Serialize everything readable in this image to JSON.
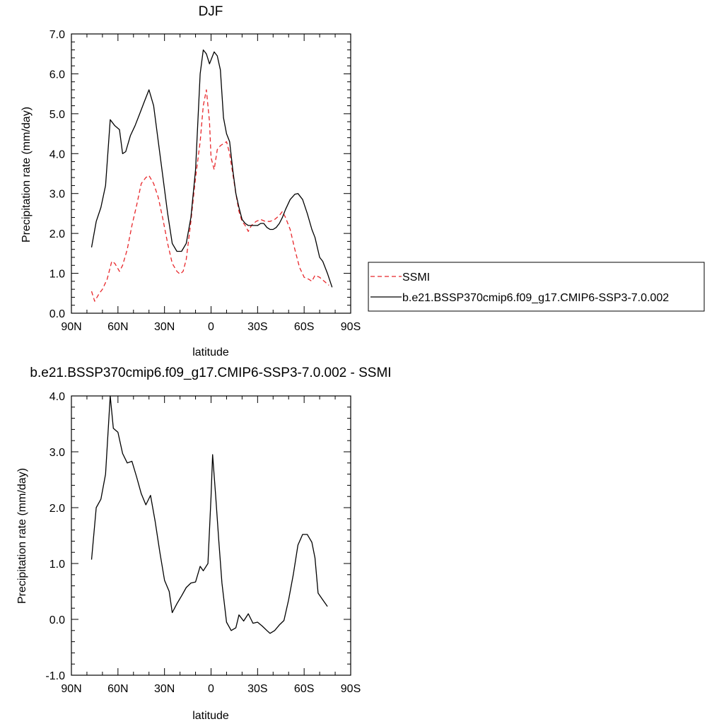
{
  "chart_data": [
    {
      "type": "line",
      "title": "DJF",
      "xlabel": "latitude",
      "ylabel": "Precipitation rate (mm/day)",
      "xlim": [
        -90,
        90
      ],
      "ylim": [
        0,
        7
      ],
      "xticks": [
        {
          "value": -90,
          "label": "90N"
        },
        {
          "value": -60,
          "label": "60N"
        },
        {
          "value": -30,
          "label": "30N"
        },
        {
          "value": 0,
          "label": "0"
        },
        {
          "value": 30,
          "label": "30S"
        },
        {
          "value": 60,
          "label": "60S"
        },
        {
          "value": 90,
          "label": "90S"
        }
      ],
      "yticks": [
        {
          "value": 0,
          "label": "0.0"
        },
        {
          "value": 1,
          "label": "1.0"
        },
        {
          "value": 2,
          "label": "2.0"
        },
        {
          "value": 3,
          "label": "3.0"
        },
        {
          "value": 4,
          "label": "4.0"
        },
        {
          "value": 5,
          "label": "5.0"
        },
        {
          "value": 6,
          "label": "6.0"
        },
        {
          "value": 7,
          "label": "7.0"
        }
      ],
      "legend": "right",
      "series": [
        {
          "name": "SSMI",
          "color": "#e8262a",
          "dash": "dashed",
          "points": [
            [
              -77,
              0.55
            ],
            [
              -75,
              0.3
            ],
            [
              -72,
              0.5
            ],
            [
              -70,
              0.6
            ],
            [
              -67,
              0.85
            ],
            [
              -64,
              1.3
            ],
            [
              -62,
              1.25
            ],
            [
              -59,
              1.05
            ],
            [
              -57,
              1.2
            ],
            [
              -54,
              1.6
            ],
            [
              -51,
              2.2
            ],
            [
              -48,
              2.7
            ],
            [
              -45,
              3.25
            ],
            [
              -42,
              3.4
            ],
            [
              -40,
              3.45
            ],
            [
              -37,
              3.25
            ],
            [
              -34,
              2.9
            ],
            [
              -31,
              2.35
            ],
            [
              -28,
              1.75
            ],
            [
              -25,
              1.25
            ],
            [
              -22,
              1.05
            ],
            [
              -20,
              0.98
            ],
            [
              -18,
              1.05
            ],
            [
              -16,
              1.35
            ],
            [
              -13,
              2.3
            ],
            [
              -10,
              3.4
            ],
            [
              -7,
              4.3
            ],
            [
              -5,
              5.2
            ],
            [
              -3,
              5.6
            ],
            [
              -1,
              4.8
            ],
            [
              0,
              3.9
            ],
            [
              2,
              3.6
            ],
            [
              4,
              4.1
            ],
            [
              6,
              4.2
            ],
            [
              8,
              4.25
            ],
            [
              10,
              4.3
            ],
            [
              12,
              4.0
            ],
            [
              14,
              3.5
            ],
            [
              16,
              3.0
            ],
            [
              18,
              2.55
            ],
            [
              20,
              2.3
            ],
            [
              22,
              2.2
            ],
            [
              24,
              2.05
            ],
            [
              26,
              2.2
            ],
            [
              29,
              2.3
            ],
            [
              32,
              2.35
            ],
            [
              35,
              2.3
            ],
            [
              38,
              2.3
            ],
            [
              41,
              2.35
            ],
            [
              44,
              2.45
            ],
            [
              46,
              2.55
            ],
            [
              48,
              2.4
            ],
            [
              51,
              2.1
            ],
            [
              54,
              1.6
            ],
            [
              57,
              1.15
            ],
            [
              60,
              0.9
            ],
            [
              63,
              0.85
            ],
            [
              65,
              0.8
            ],
            [
              67,
              0.95
            ],
            [
              70,
              0.9
            ],
            [
              73,
              0.8
            ],
            [
              76,
              0.7
            ]
          ]
        },
        {
          "name": "b.e21.BSSP370cmip6.f09_g17.CMIP6-SSP3-7.0.002",
          "color": "#000000",
          "dash": "solid",
          "points": [
            [
              -77,
              1.65
            ],
            [
              -74,
              2.3
            ],
            [
              -71,
              2.65
            ],
            [
              -68,
              3.2
            ],
            [
              -65,
              4.85
            ],
            [
              -62,
              4.7
            ],
            [
              -59,
              4.6
            ],
            [
              -57,
              4.0
            ],
            [
              -55,
              4.05
            ],
            [
              -52,
              4.45
            ],
            [
              -49,
              4.7
            ],
            [
              -46,
              5.0
            ],
            [
              -43,
              5.3
            ],
            [
              -40,
              5.6
            ],
            [
              -37,
              5.2
            ],
            [
              -34,
              4.3
            ],
            [
              -31,
              3.4
            ],
            [
              -28,
              2.5
            ],
            [
              -25,
              1.75
            ],
            [
              -22,
              1.55
            ],
            [
              -19,
              1.55
            ],
            [
              -16,
              1.75
            ],
            [
              -13,
              2.4
            ],
            [
              -10,
              3.6
            ],
            [
              -7,
              6.0
            ],
            [
              -5,
              6.6
            ],
            [
              -3,
              6.5
            ],
            [
              -1,
              6.25
            ],
            [
              1,
              6.45
            ],
            [
              2,
              6.55
            ],
            [
              4,
              6.45
            ],
            [
              6,
              6.1
            ],
            [
              8,
              4.9
            ],
            [
              10,
              4.5
            ],
            [
              12,
              4.3
            ],
            [
              14,
              3.6
            ],
            [
              16,
              3.0
            ],
            [
              18,
              2.65
            ],
            [
              20,
              2.35
            ],
            [
              22,
              2.25
            ],
            [
              24,
              2.2
            ],
            [
              26,
              2.2
            ],
            [
              28,
              2.2
            ],
            [
              30,
              2.2
            ],
            [
              32,
              2.25
            ],
            [
              34,
              2.25
            ],
            [
              36,
              2.15
            ],
            [
              38,
              2.1
            ],
            [
              40,
              2.1
            ],
            [
              42,
              2.15
            ],
            [
              44,
              2.25
            ],
            [
              46,
              2.4
            ],
            [
              48,
              2.6
            ],
            [
              51,
              2.85
            ],
            [
              54,
              2.98
            ],
            [
              56,
              3.0
            ],
            [
              59,
              2.85
            ],
            [
              62,
              2.5
            ],
            [
              65,
              2.1
            ],
            [
              67,
              1.9
            ],
            [
              70,
              1.4
            ],
            [
              72,
              1.3
            ],
            [
              75,
              1.0
            ],
            [
              78,
              0.65
            ]
          ]
        }
      ]
    },
    {
      "type": "line",
      "title": "b.e21.BSSP370cmip6.f09_g17.CMIP6-SSP3-7.0.002 - SSMI",
      "xlabel": "latitude",
      "ylabel": "Precipitation rate (mm/day)",
      "xlim": [
        -90,
        90
      ],
      "ylim": [
        -1,
        4
      ],
      "xticks": [
        {
          "value": -90,
          "label": "90N"
        },
        {
          "value": -60,
          "label": "60N"
        },
        {
          "value": -30,
          "label": "30N"
        },
        {
          "value": 0,
          "label": "0"
        },
        {
          "value": 30,
          "label": "30S"
        },
        {
          "value": 60,
          "label": "60S"
        },
        {
          "value": 90,
          "label": "90S"
        }
      ],
      "yticks": [
        {
          "value": -1,
          "label": "-1.0"
        },
        {
          "value": 0,
          "label": "0.0"
        },
        {
          "value": 1,
          "label": "1.0"
        },
        {
          "value": 2,
          "label": "2.0"
        },
        {
          "value": 3,
          "label": "3.0"
        },
        {
          "value": 4,
          "label": "4.0"
        }
      ],
      "series": [
        {
          "color": "#000000",
          "dash": "solid",
          "points": [
            [
              -77,
              1.07
            ],
            [
              -74,
              2.0
            ],
            [
              -71,
              2.15
            ],
            [
              -68,
              2.6
            ],
            [
              -65,
              4.0
            ],
            [
              -63,
              3.42
            ],
            [
              -60,
              3.35
            ],
            [
              -57,
              2.97
            ],
            [
              -54,
              2.8
            ],
            [
              -51,
              2.83
            ],
            [
              -48,
              2.55
            ],
            [
              -45,
              2.25
            ],
            [
              -42,
              2.05
            ],
            [
              -39,
              2.22
            ],
            [
              -36,
              1.75
            ],
            [
              -33,
              1.2
            ],
            [
              -30,
              0.7
            ],
            [
              -27,
              0.5
            ],
            [
              -25,
              0.12
            ],
            [
              -22,
              0.28
            ],
            [
              -19,
              0.42
            ],
            [
              -16,
              0.57
            ],
            [
              -13,
              0.65
            ],
            [
              -10,
              0.67
            ],
            [
              -7,
              0.95
            ],
            [
              -5,
              0.87
            ],
            [
              -2,
              1.0
            ],
            [
              0,
              2.2
            ],
            [
              1,
              2.95
            ],
            [
              3,
              2.2
            ],
            [
              5,
              1.4
            ],
            [
              7,
              0.65
            ],
            [
              10,
              -0.05
            ],
            [
              13,
              -0.2
            ],
            [
              16,
              -0.15
            ],
            [
              18,
              0.08
            ],
            [
              21,
              -0.03
            ],
            [
              24,
              0.1
            ],
            [
              27,
              -0.07
            ],
            [
              30,
              -0.05
            ],
            [
              33,
              -0.12
            ],
            [
              36,
              -0.2
            ],
            [
              38,
              -0.25
            ],
            [
              41,
              -0.2
            ],
            [
              44,
              -0.1
            ],
            [
              47,
              -0.02
            ],
            [
              50,
              0.35
            ],
            [
              53,
              0.8
            ],
            [
              56,
              1.33
            ],
            [
              59,
              1.52
            ],
            [
              62,
              1.52
            ],
            [
              65,
              1.38
            ],
            [
              67,
              1.1
            ],
            [
              69,
              0.47
            ],
            [
              72,
              0.35
            ],
            [
              75,
              0.23
            ]
          ]
        }
      ]
    }
  ]
}
